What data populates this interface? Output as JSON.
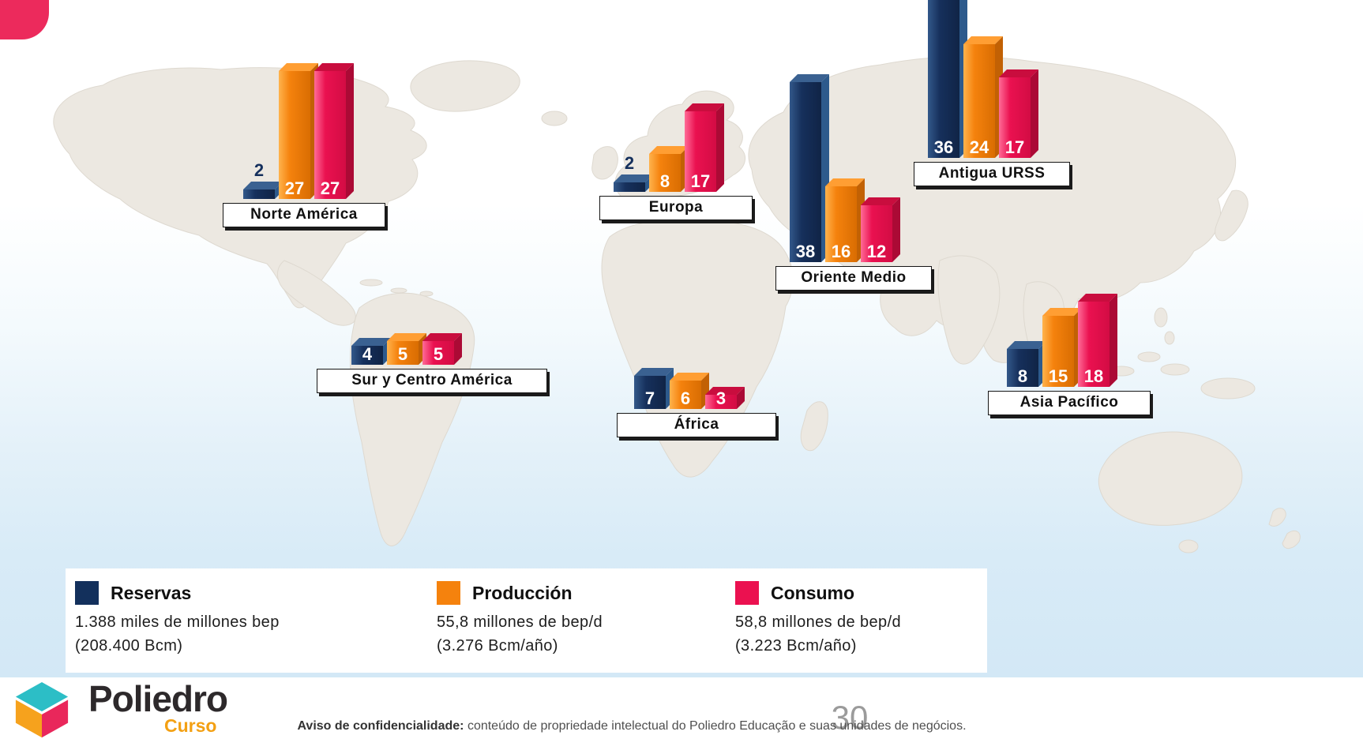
{
  "chart_data": {
    "type": "bar",
    "title": "",
    "legend_position": "bottom",
    "series": [
      {
        "name": "Reservas",
        "color": "#13305C",
        "total_line1": "1.388 miles de millones bep",
        "total_line2": "(208.400 Bcm)"
      },
      {
        "name": "Producción",
        "color": "#F5820D",
        "total_line1": "55,8 millones de bep/d",
        "total_line2": "(3.276 Bcm/año)"
      },
      {
        "name": "Consumo",
        "color": "#EB1150",
        "total_line1": "58,8 millones de bep/d",
        "total_line2": "(3.223 Bcm/año)"
      }
    ],
    "regions": [
      {
        "label": "Norte América",
        "values": [
          2,
          27,
          27
        ]
      },
      {
        "label": "Sur y Centro América",
        "values": [
          4,
          5,
          5
        ]
      },
      {
        "label": "Europa",
        "values": [
          2,
          8,
          17
        ]
      },
      {
        "label": "África",
        "values": [
          7,
          6,
          3
        ]
      },
      {
        "label": "Oriente Medio",
        "values": [
          38,
          16,
          12
        ]
      },
      {
        "label": "Antigua URSS",
        "values": [
          36,
          24,
          17
        ]
      },
      {
        "label": "Asia Pacífico",
        "values": [
          8,
          15,
          18
        ]
      }
    ]
  },
  "footer": {
    "logo_title": "Poliedro",
    "logo_subtitle": "Curso",
    "page_number": "30",
    "disclaimer_bold": "Aviso de confidencialidade:",
    "disclaimer_text": "conteúdo de propriedade intelectual do Poliedro Educação e suas unidades de negócios."
  }
}
